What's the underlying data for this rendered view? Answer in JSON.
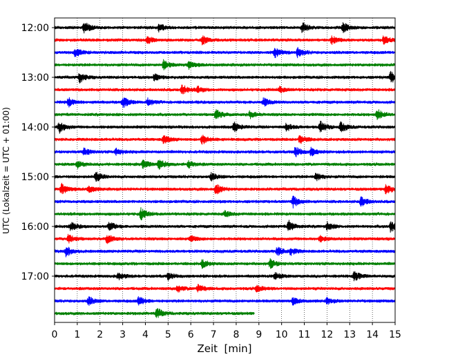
{
  "chart_data": {
    "type": "line",
    "title": "",
    "xlabel": "Zeit  [min]",
    "ylabel": "UTC (Lokalzeit = UTC + 01:00)",
    "xlim": [
      0,
      15
    ],
    "x_ticks": [
      "0",
      "1",
      "2",
      "3",
      "4",
      "5",
      "6",
      "7",
      "8",
      "9",
      "10",
      "11",
      "12",
      "13",
      "14",
      "15"
    ],
    "y_ticks": [
      "12:00",
      "13:00",
      "14:00",
      "15:00",
      "16:00",
      "17:00"
    ],
    "grid": "vertical dotted",
    "legend": "none",
    "trace_interval_minutes": 15,
    "trace_colors": [
      "#000000",
      "#ff0000",
      "#0000ff",
      "#008000"
    ],
    "traces": [
      {
        "start": "12:00",
        "color": "#000000",
        "x_end": 15
      },
      {
        "start": "12:15",
        "color": "#ff0000",
        "x_end": 15
      },
      {
        "start": "12:30",
        "color": "#0000ff",
        "x_end": 15
      },
      {
        "start": "12:45",
        "color": "#008000",
        "x_end": 15
      },
      {
        "start": "13:00",
        "color": "#000000",
        "x_end": 15
      },
      {
        "start": "13:15",
        "color": "#ff0000",
        "x_end": 15
      },
      {
        "start": "13:30",
        "color": "#0000ff",
        "x_end": 15
      },
      {
        "start": "13:45",
        "color": "#008000",
        "x_end": 15
      },
      {
        "start": "14:00",
        "color": "#000000",
        "x_end": 15
      },
      {
        "start": "14:15",
        "color": "#ff0000",
        "x_end": 15
      },
      {
        "start": "14:30",
        "color": "#0000ff",
        "x_end": 15
      },
      {
        "start": "14:45",
        "color": "#008000",
        "x_end": 15
      },
      {
        "start": "15:00",
        "color": "#000000",
        "x_end": 15
      },
      {
        "start": "15:15",
        "color": "#ff0000",
        "x_end": 15
      },
      {
        "start": "15:30",
        "color": "#0000ff",
        "x_end": 15
      },
      {
        "start": "15:45",
        "color": "#008000",
        "x_end": 15
      },
      {
        "start": "16:00",
        "color": "#000000",
        "x_end": 15
      },
      {
        "start": "16:15",
        "color": "#ff0000",
        "x_end": 15
      },
      {
        "start": "16:30",
        "color": "#0000ff",
        "x_end": 15
      },
      {
        "start": "16:45",
        "color": "#008000",
        "x_end": 15
      },
      {
        "start": "17:00",
        "color": "#000000",
        "x_end": 15
      },
      {
        "start": "17:15",
        "color": "#ff0000",
        "x_end": 15
      },
      {
        "start": "17:30",
        "color": "#0000ff",
        "x_end": 15
      },
      {
        "start": "17:45",
        "color": "#008000",
        "x_end": 8.8
      }
    ],
    "events": [
      [
        [
          1.3,
          1.0
        ],
        [
          4.6,
          0.7
        ],
        [
          10.9,
          0.8
        ],
        [
          12.7,
          0.9
        ]
      ],
      [
        [
          4.1,
          0.6
        ],
        [
          6.5,
          0.8
        ],
        [
          12.2,
          0.7
        ],
        [
          14.5,
          0.9
        ]
      ],
      [
        [
          0.9,
          0.8
        ],
        [
          9.7,
          0.8
        ],
        [
          10.7,
          0.9
        ]
      ],
      [
        [
          4.8,
          0.8
        ],
        [
          5.9,
          0.7
        ]
      ],
      [
        [
          1.1,
          0.9
        ],
        [
          4.4,
          0.6
        ],
        [
          14.8,
          1.0
        ]
      ],
      [
        [
          5.6,
          0.9
        ],
        [
          6.3,
          0.5
        ],
        [
          9.9,
          0.5
        ]
      ],
      [
        [
          0.6,
          0.8
        ],
        [
          3.0,
          1.0
        ],
        [
          4.1,
          0.6
        ],
        [
          9.2,
          0.7
        ]
      ],
      [
        [
          7.1,
          1.0
        ],
        [
          8.6,
          0.6
        ],
        [
          14.2,
          1.0
        ]
      ],
      [
        [
          0.2,
          1.0
        ],
        [
          7.9,
          0.8
        ],
        [
          10.2,
          0.7
        ],
        [
          11.7,
          1.0
        ],
        [
          12.6,
          0.9
        ]
      ],
      [
        [
          4.8,
          0.8
        ],
        [
          6.5,
          0.9
        ],
        [
          10.8,
          0.8
        ]
      ],
      [
        [
          1.3,
          0.7
        ],
        [
          2.7,
          0.6
        ],
        [
          10.6,
          0.9
        ],
        [
          11.3,
          0.7
        ]
      ],
      [
        [
          1.0,
          0.6
        ],
        [
          3.9,
          0.7
        ],
        [
          4.6,
          1.0
        ],
        [
          5.9,
          0.6
        ]
      ],
      [
        [
          1.8,
          0.9
        ],
        [
          6.9,
          0.6
        ],
        [
          11.5,
          0.7
        ]
      ],
      [
        [
          0.3,
          1.0
        ],
        [
          1.5,
          0.6
        ],
        [
          7.1,
          1.0
        ],
        [
          14.6,
          0.9
        ]
      ],
      [
        [
          10.5,
          1.0
        ],
        [
          13.5,
          0.9
        ]
      ],
      [
        [
          3.8,
          1.0
        ],
        [
          7.5,
          0.5
        ]
      ],
      [
        [
          0.7,
          0.7
        ],
        [
          2.4,
          0.8
        ],
        [
          10.3,
          1.0
        ],
        [
          12.0,
          0.7
        ],
        [
          14.8,
          1.0
        ]
      ],
      [
        [
          0.6,
          0.8
        ],
        [
          2.3,
          0.8
        ],
        [
          6.0,
          0.5
        ],
        [
          11.7,
          0.5
        ]
      ],
      [
        [
          0.5,
          0.9
        ],
        [
          9.8,
          0.8
        ],
        [
          10.4,
          0.6
        ]
      ],
      [
        [
          6.5,
          0.7
        ],
        [
          9.5,
          0.8
        ]
      ],
      [
        [
          2.8,
          0.6
        ],
        [
          5.0,
          0.6
        ],
        [
          9.7,
          0.6
        ],
        [
          13.2,
          0.8
        ]
      ],
      [
        [
          5.4,
          0.6
        ],
        [
          6.3,
          0.7
        ],
        [
          8.9,
          0.6
        ]
      ],
      [
        [
          1.5,
          0.7
        ],
        [
          3.7,
          0.8
        ],
        [
          10.5,
          0.6
        ],
        [
          12.0,
          0.5
        ]
      ],
      [
        [
          4.5,
          0.9
        ]
      ]
    ]
  }
}
